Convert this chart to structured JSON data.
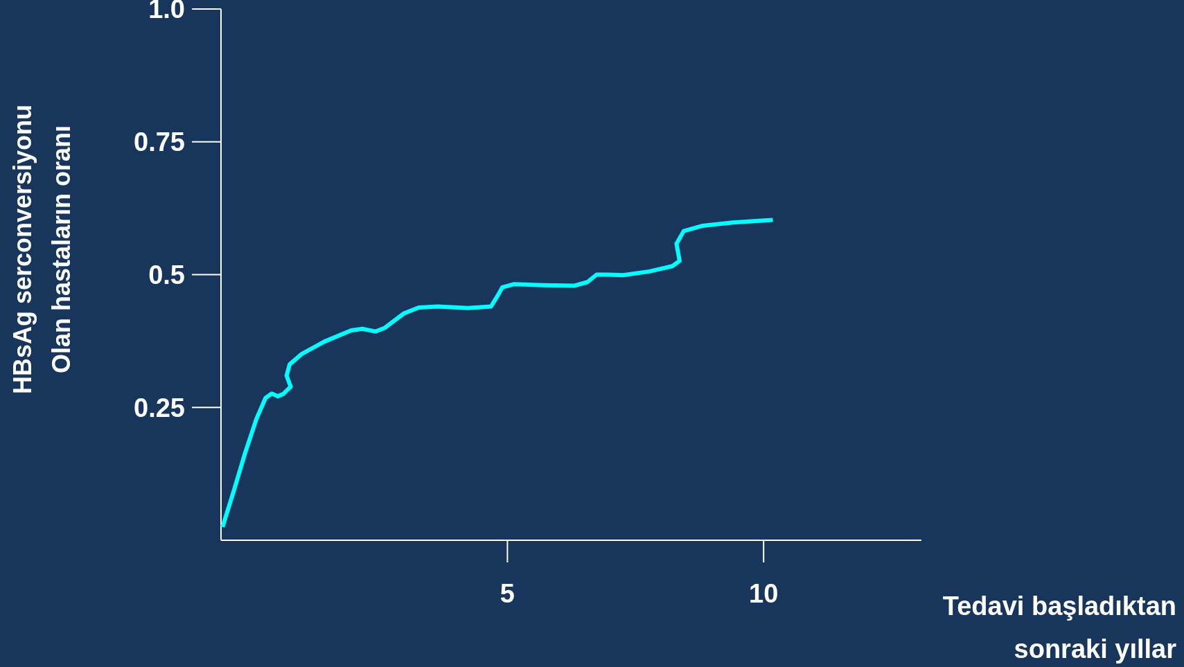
{
  "chart_data": {
    "type": "line",
    "xlabel": "Tedavi başladıktan\nsonraki yıllar",
    "ylabel": "HBsAg serconversiyonu\nOlan hastaların oranı",
    "xlim": [
      -0.59,
      13.08
    ],
    "xticks": [
      5,
      10
    ],
    "ylim": [
      0,
      1
    ],
    "yticks": [
      0.25,
      0.5,
      0.75,
      {
        "value": 1,
        "label": "1.0"
      }
    ],
    "grid": false,
    "marker": "none",
    "line_style": "solid",
    "series": [
      {
        "color": "#00ffff",
        "x": [
          -0.56,
          -0.34,
          -0.12,
          0.1,
          0.28,
          0.4,
          0.52,
          0.62,
          0.77,
          0.69,
          0.75,
          0.99,
          1.43,
          1.95,
          2.17,
          2.43,
          2.61,
          2.98,
          3.27,
          3.64,
          4.23,
          4.68,
          4.82,
          4.9,
          5.12,
          5.71,
          6.3,
          6.56,
          6.74,
          6.96,
          7.26,
          7.77,
          8.22,
          8.36,
          8.3,
          8.44,
          8.81,
          9.4,
          10.18
        ],
        "values": [
          0.025,
          0.093,
          0.164,
          0.228,
          0.268,
          0.276,
          0.271,
          0.275,
          0.289,
          0.31,
          0.331,
          0.351,
          0.374,
          0.395,
          0.398,
          0.393,
          0.4,
          0.427,
          0.438,
          0.44,
          0.437,
          0.44,
          0.462,
          0.476,
          0.482,
          0.48,
          0.479,
          0.486,
          0.5,
          0.5,
          0.499,
          0.506,
          0.516,
          0.526,
          0.558,
          0.582,
          0.592,
          0.598,
          0.603
        ]
      }
    ]
  }
}
